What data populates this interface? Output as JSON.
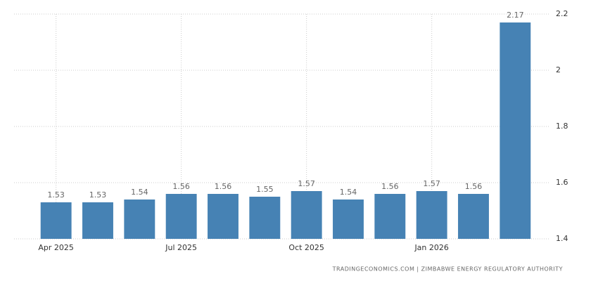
{
  "chart_data": {
    "type": "bar",
    "categories": [
      "Apr 2025",
      null,
      null,
      "Jul 2025",
      null,
      null,
      "Oct 2025",
      null,
      null,
      "Jan 2026",
      null,
      null
    ],
    "values": [
      1.53,
      1.53,
      1.54,
      1.56,
      1.56,
      1.55,
      1.57,
      1.54,
      1.56,
      1.57,
      1.56,
      2.17
    ],
    "color": "#4682b4",
    "ylim": [
      1.4,
      2.2
    ],
    "yticks": [
      1.4,
      1.6,
      1.8,
      2,
      2.2
    ],
    "grid": true,
    "source": "TRADINGECONOMICS.COM | ZIMBABWE ENERGY REGULATORY AUTHORITY"
  }
}
